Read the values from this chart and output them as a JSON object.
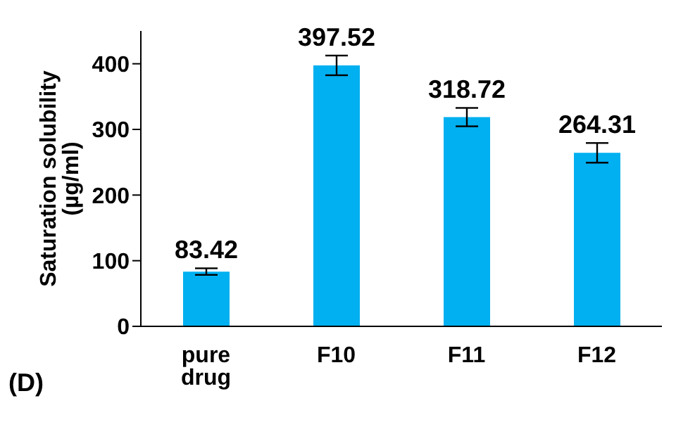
{
  "chart_data": {
    "type": "bar",
    "ylabel": "Saturation solubility (µg/ml)",
    "annotations": [
      "(D)"
    ],
    "categories": [
      "pure drug",
      "F10",
      "F11",
      "F12"
    ],
    "values": [
      83.42,
      397.52,
      318.72,
      264.31
    ],
    "errors": [
      5,
      15,
      14,
      15
    ],
    "color": "#00b0f0",
    "ylim": [
      0,
      450
    ],
    "yticks": [
      0,
      100,
      200,
      300,
      400
    ],
    "grid": false,
    "data_labels": true
  }
}
